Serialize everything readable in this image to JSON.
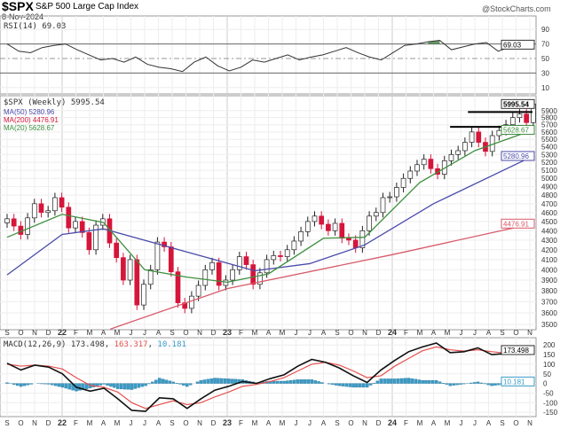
{
  "header": {
    "symbol": "$SPX",
    "name": "S&P 500 Large Cap Index",
    "date": "8-Nov-2024",
    "credit": "@StockCharts.com"
  },
  "colors": {
    "up": "#ffffff",
    "down": "#d6153a",
    "ma50": "#4b4bab",
    "ma200": "#d85a6a",
    "ma20": "#3f8f3f",
    "macd": "#111111",
    "signal": "#e85050",
    "hist": "#3a9cc8",
    "rsi_fill": "#3f7f3f"
  },
  "rsi": {
    "label": "RSI(14) 69.03",
    "value": "69.03",
    "ticks": [
      90,
      70,
      50,
      30,
      10
    ],
    "values": [
      70,
      60,
      58,
      65,
      68,
      70,
      62,
      55,
      48,
      50,
      45,
      52,
      42,
      38,
      36,
      32,
      45,
      52,
      40,
      33,
      38,
      48,
      45,
      50,
      55,
      48,
      52,
      55,
      60,
      65,
      58,
      52,
      48,
      58,
      68,
      70,
      73,
      75,
      62,
      66,
      70,
      72,
      60,
      66,
      68,
      69
    ]
  },
  "price": {
    "label": "$SPX (Weekly) 5995.54",
    "last": "5995.54",
    "ma50_label": "MA(50) 5280.96",
    "ma200_label": "MA(200) 4476.91",
    "ma20_label": "MA(20) 5628.67",
    "ma50_value": "5280.96",
    "ma200_value": "4476.91",
    "ma20_value": "5628.67",
    "ticks": [
      5900,
      5800,
      5700,
      5600,
      5500,
      5400,
      5300,
      5200,
      5100,
      5000,
      4900,
      4800,
      4700,
      4600,
      4500,
      4400,
      4300,
      4200,
      4100,
      4000,
      3900,
      3800,
      3700,
      3600,
      3500
    ],
    "closes": [
      4530,
      4450,
      4360,
      4540,
      4700,
      4600,
      4620,
      4770,
      4660,
      4430,
      4500,
      4380,
      4200,
      4460,
      4530,
      4270,
      4120,
      3900,
      4100,
      3670,
      3860,
      4000,
      4280,
      4230,
      3980,
      3690,
      3640,
      3750,
      3850,
      4000,
      4070,
      3850,
      3900,
      4000,
      4130,
      4050,
      3860,
      3970,
      4100,
      4140,
      4130,
      4200,
      4290,
      4390,
      4500,
      4560,
      4470,
      4400,
      4480,
      4320,
      4300,
      4220,
      4400,
      4560,
      4600,
      4770,
      4780,
      4890,
      5000,
      5090,
      5170,
      5240,
      5120,
      5050,
      5220,
      5300,
      5350,
      5460,
      5600,
      5460,
      5340,
      5550,
      5620,
      5700,
      5800,
      5850,
      5730,
      5995.54
    ],
    "ma50": [
      [
        0,
        3950
      ],
      [
        4,
        4360
      ],
      [
        7,
        4420
      ],
      [
        13,
        4180
      ],
      [
        18,
        3990
      ],
      [
        22,
        4060
      ],
      [
        26,
        4250
      ],
      [
        31,
        4700
      ],
      [
        38.25,
        5281
      ]
    ],
    "ma200": [
      [
        7.5,
        3460
      ],
      [
        16,
        3820
      ],
      [
        28,
        4150
      ],
      [
        38.25,
        4477
      ]
    ],
    "ma20": [
      [
        0,
        4330
      ],
      [
        4,
        4580
      ],
      [
        7,
        4490
      ],
      [
        10,
        4000
      ],
      [
        13,
        3930
      ],
      [
        16,
        3880
      ],
      [
        19,
        3960
      ],
      [
        23,
        4320
      ],
      [
        26,
        4330
      ],
      [
        30,
        4950
      ],
      [
        34,
        5350
      ],
      [
        38.25,
        5629
      ]
    ],
    "resistance": [
      {
        "level": 5880,
        "from": 33.5
      },
      {
        "level": 5670,
        "from": 32.2
      }
    ]
  },
  "macd": {
    "label": "MACD(12,26,9) 173.498",
    "signal_label": "163.317",
    "hist_label": "10.181",
    "macd_value": "173.498",
    "hist_value": "10.181",
    "ticks": [
      200,
      150,
      100,
      50,
      0,
      -50,
      -100,
      -150
    ],
    "macd": [
      105,
      70,
      95,
      85,
      50,
      -20,
      -40,
      -25,
      -80,
      -140,
      -145,
      -75,
      -80,
      -130,
      -80,
      -35,
      -15,
      10,
      0,
      25,
      45,
      90,
      125,
      110,
      80,
      40,
      5,
      70,
      120,
      165,
      190,
      210,
      160,
      165,
      185,
      150,
      155,
      170,
      173.5
    ],
    "signal": [
      100,
      90,
      95,
      90,
      75,
      30,
      -10,
      -20,
      -45,
      -100,
      -130,
      -110,
      -90,
      -110,
      -100,
      -70,
      -45,
      -15,
      -5,
      10,
      30,
      65,
      100,
      110,
      95,
      65,
      30,
      40,
      90,
      130,
      170,
      190,
      175,
      168,
      175,
      165,
      158,
      163,
      163.3
    ]
  },
  "xaxis": {
    "labels": [
      "S",
      "O",
      "N",
      "D",
      "22",
      "F",
      "M",
      "A",
      "M",
      "J",
      "J",
      "A",
      "S",
      "O",
      "N",
      "D",
      "23",
      "F",
      "M",
      "A",
      "M",
      "J",
      "J",
      "A",
      "S",
      "O",
      "N",
      "D",
      "24",
      "F",
      "M",
      "A",
      "M",
      "J",
      "J",
      "A",
      "S",
      "O",
      "N"
    ]
  }
}
